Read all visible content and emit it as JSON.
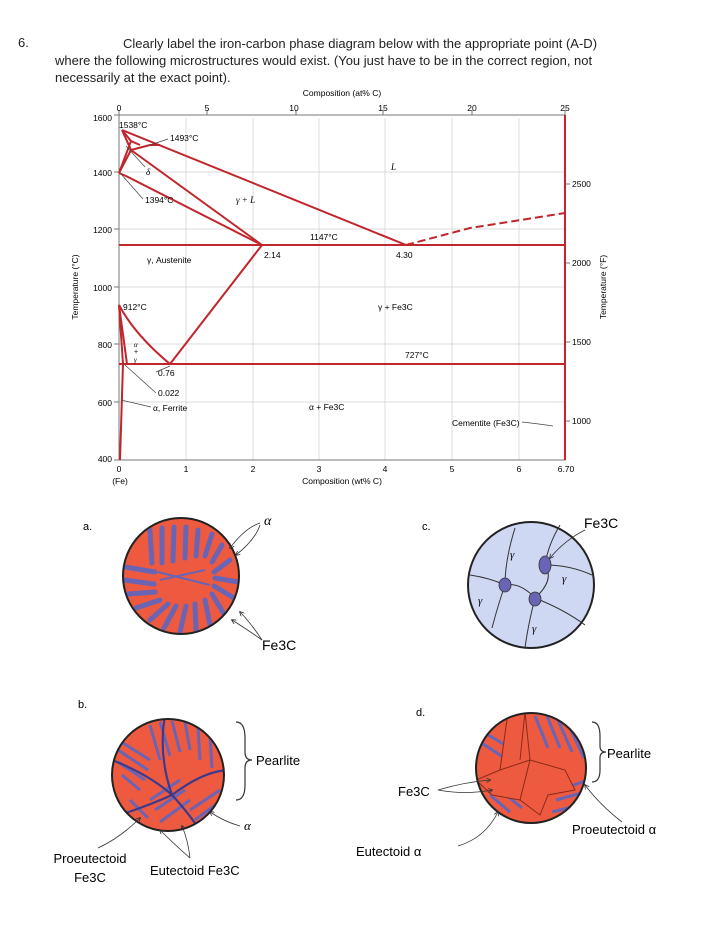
{
  "question": {
    "number": "6.",
    "line1": "Clearly label the iron-carbon phase diagram below with the appropriate point (A-D)",
    "line2": "where the following microstructures would exist. (You just have to be in the correct region, not",
    "line3": "necessarily at the exact point)."
  },
  "diagram": {
    "top_axis_title": "Composition (at% C)",
    "top_ticks": [
      "0",
      "5",
      "10",
      "15",
      "20",
      "25"
    ],
    "bottom_axis_title": "Composition (wt% C)",
    "bottom_ticks": [
      "0",
      "1",
      "2",
      "3",
      "4",
      "5",
      "6",
      "6.70"
    ],
    "fe_label": "(Fe)",
    "left_axis_title": "Temperature (°C)",
    "left_ticks": [
      "1600",
      "1400",
      "1200",
      "1000",
      "800",
      "600",
      "400"
    ],
    "right_axis_title": "Temperature (°F)",
    "right_ticks": [
      "2500",
      "2000",
      "1500",
      "1000"
    ],
    "labels": {
      "t1538": "1538°C",
      "t1493": "1493°C",
      "delta": "δ",
      "t1394": "1394°C",
      "gamma_l": "γ + L",
      "liquid": "L",
      "t1147": "1147°C",
      "c214": "2.14",
      "c430": "4.30",
      "austenite": "γ, Austenite",
      "t912": "912°C",
      "gamma_fe3c": "γ + Fe3C",
      "t727": "727°C",
      "alpha_small": "α",
      "plus_small": "+",
      "gamma_small": "γ",
      "c076": "0.76",
      "c0022": "0.022",
      "ferrite": "α, Ferrite",
      "alpha_fe3c": "α + Fe3C",
      "cementite": "Cementite (Fe3C)"
    }
  },
  "panels": {
    "a": {
      "letter": "a.",
      "alpha": "α",
      "fe3c": "Fe3C"
    },
    "b": {
      "letter": "b.",
      "pearlite": "Pearlite",
      "alpha": "α",
      "proeutectoid_1": "Proeutectoid",
      "proeutectoid_2": "Fe3C",
      "eutectoid": "Eutectoid Fe3C"
    },
    "c": {
      "letter": "c.",
      "fe3c": "Fe3C",
      "gamma": "γ"
    },
    "d": {
      "letter": "d.",
      "pearlite": "Pearlite",
      "fe3c": "Fe3C",
      "proeutectoid": "Proeutectoid α",
      "eutectoid": "Eutectoid α"
    }
  },
  "colors": {
    "phase_line": "#c0262c",
    "lamella_red": "#ee5a3f",
    "lamella_blue": "#6a64b4",
    "grain_fill": "#cfd8f2"
  }
}
